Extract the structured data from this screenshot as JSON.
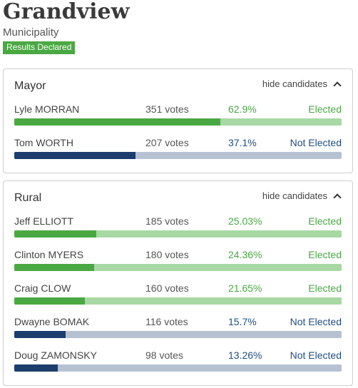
{
  "header": {
    "title": "Grandview",
    "subtitle": "Municipality",
    "badge": "Results Declared"
  },
  "colors": {
    "elected_fill": "#4aa843",
    "elected_track": "#a8d8a3",
    "not_elected_fill": "#1c3d6e",
    "not_elected_track": "#b6c2d2"
  },
  "races": [
    {
      "title": "Mayor",
      "toggle_label": "hide candidates",
      "toggle_icon": "chevron-up-icon",
      "candidates": [
        {
          "name": "Lyle MORRAN",
          "votes": "351 votes",
          "percent": "62.9%",
          "share": 62.9,
          "status": "Elected",
          "elected": true
        },
        {
          "name": "Tom WORTH",
          "votes": "207 votes",
          "percent": "37.1%",
          "share": 37.1,
          "status": "Not Elected",
          "elected": false
        }
      ]
    },
    {
      "title": "Rural",
      "toggle_label": "hide candidates",
      "toggle_icon": "chevron-up-icon",
      "candidates": [
        {
          "name": "Jeff ELLIOTT",
          "votes": "185 votes",
          "percent": "25.03%",
          "share": 25.03,
          "status": "Elected",
          "elected": true
        },
        {
          "name": "Clinton MYERS",
          "votes": "180 votes",
          "percent": "24.36%",
          "share": 24.36,
          "status": "Elected",
          "elected": true
        },
        {
          "name": "Craig CLOW",
          "votes": "160 votes",
          "percent": "21.65%",
          "share": 21.65,
          "status": "Elected",
          "elected": true
        },
        {
          "name": "Dwayne BOMAK",
          "votes": "116 votes",
          "percent": "15.7%",
          "share": 15.7,
          "status": "Not Elected",
          "elected": false
        },
        {
          "name": "Doug ZAMONSKY",
          "votes": "98 votes",
          "percent": "13.26%",
          "share": 13.26,
          "status": "Not Elected",
          "elected": false
        }
      ]
    }
  ]
}
